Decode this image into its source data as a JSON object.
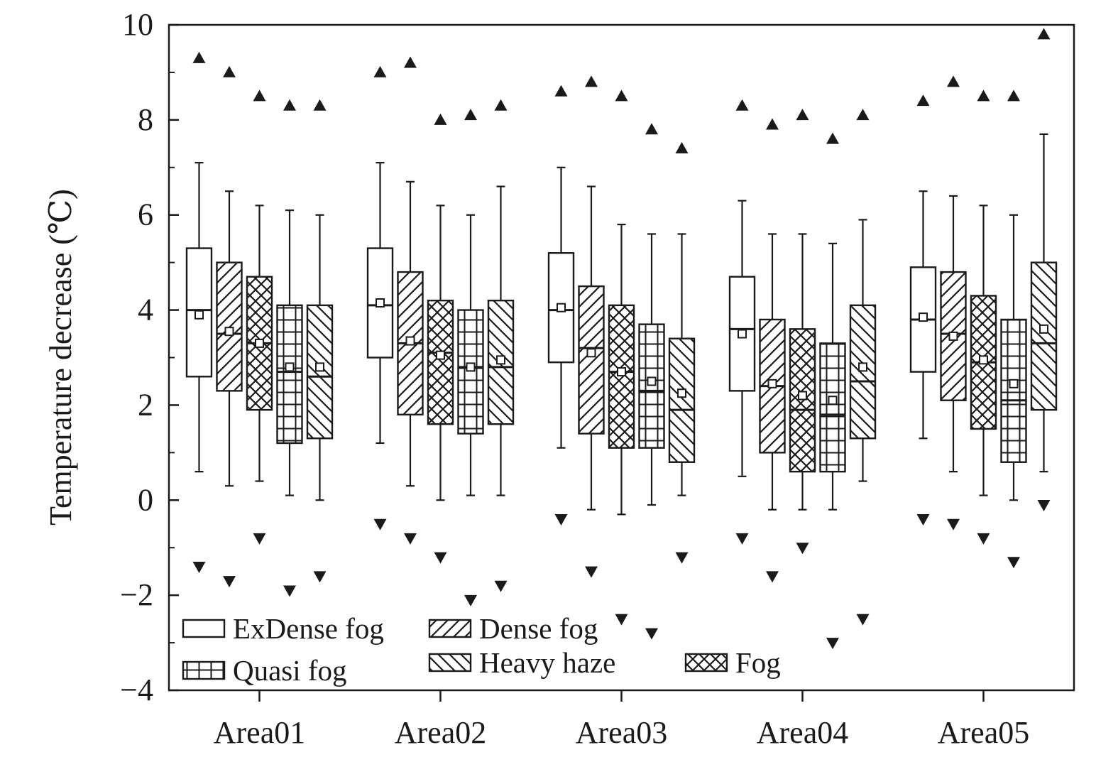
{
  "chart_data": {
    "type": "boxplot",
    "ylabel": "Temperature decrease (℃)",
    "xlabel": "",
    "ylim": [
      -4,
      10
    ],
    "yticks": [
      -4,
      -2,
      0,
      2,
      4,
      6,
      8,
      10
    ],
    "ytick_labels": [
      "−4",
      "−2",
      "0",
      "2",
      "4",
      "6",
      "8",
      "10"
    ],
    "categories": [
      "Area01",
      "Area02",
      "Area03",
      "Area04",
      "Area05"
    ],
    "series_order": [
      "ExDense fog",
      "Dense fog",
      "Fog",
      "Quasi fog",
      "Heavy haze"
    ],
    "legend": [
      {
        "name": "ExDense fog",
        "pattern": "none"
      },
      {
        "name": "Dense fog",
        "pattern": "diag"
      },
      {
        "name": "Quasi fog",
        "pattern": "grid"
      },
      {
        "name": "Heavy haze",
        "pattern": "antidiag"
      },
      {
        "name": "Fog",
        "pattern": "cross"
      }
    ],
    "legend_position": "bottom-left",
    "boxes": {
      "Area01": [
        {
          "series": "ExDense fog",
          "min": 0.6,
          "q1": 2.6,
          "median": 4.0,
          "q3": 5.3,
          "max": 7.1,
          "mean": 3.9,
          "outlier_high": 9.3,
          "outlier_low": -1.4
        },
        {
          "series": "Dense fog",
          "min": 0.3,
          "q1": 2.3,
          "median": 3.5,
          "q3": 5.0,
          "max": 6.5,
          "mean": 3.55,
          "outlier_high": 9.0,
          "outlier_low": -1.7
        },
        {
          "series": "Fog",
          "min": 0.4,
          "q1": 1.9,
          "median": 3.3,
          "q3": 4.7,
          "max": 6.2,
          "mean": 3.3,
          "outlier_high": 8.5,
          "outlier_low": -0.8
        },
        {
          "series": "Quasi fog",
          "min": 0.1,
          "q1": 1.2,
          "median": 2.7,
          "q3": 4.1,
          "max": 6.1,
          "mean": 2.8,
          "outlier_high": 8.3,
          "outlier_low": -1.9
        },
        {
          "series": "Heavy haze",
          "min": 0.0,
          "q1": 1.3,
          "median": 2.6,
          "q3": 4.1,
          "max": 6.0,
          "mean": 2.8,
          "outlier_high": 8.3,
          "outlier_low": -1.6
        }
      ],
      "Area02": [
        {
          "series": "ExDense fog",
          "min": 1.2,
          "q1": 3.0,
          "median": 4.1,
          "q3": 5.3,
          "max": 7.1,
          "mean": 4.15,
          "outlier_high": 9.0,
          "outlier_low": -0.5
        },
        {
          "series": "Dense fog",
          "min": 0.3,
          "q1": 1.8,
          "median": 3.3,
          "q3": 4.8,
          "max": 6.7,
          "mean": 3.35,
          "outlier_high": 9.2,
          "outlier_low": -0.8
        },
        {
          "series": "Fog",
          "min": 0.0,
          "q1": 1.6,
          "median": 3.1,
          "q3": 4.2,
          "max": 6.2,
          "mean": 3.05,
          "outlier_high": 8.0,
          "outlier_low": -1.2
        },
        {
          "series": "Quasi fog",
          "min": 0.1,
          "q1": 1.4,
          "median": 2.8,
          "q3": 4.0,
          "max": 6.0,
          "mean": 2.8,
          "outlier_high": 8.1,
          "outlier_low": -2.1
        },
        {
          "series": "Heavy haze",
          "min": 0.1,
          "q1": 1.6,
          "median": 2.8,
          "q3": 4.2,
          "max": 6.6,
          "mean": 2.95,
          "outlier_high": 8.3,
          "outlier_low": -1.8
        }
      ],
      "Area03": [
        {
          "series": "ExDense fog",
          "min": 1.1,
          "q1": 2.9,
          "median": 4.0,
          "q3": 5.2,
          "max": 7.0,
          "mean": 4.05,
          "outlier_high": 8.6,
          "outlier_low": -0.4
        },
        {
          "series": "Dense fog",
          "min": -0.2,
          "q1": 1.4,
          "median": 3.2,
          "q3": 4.5,
          "max": 6.6,
          "mean": 3.1,
          "outlier_high": 8.8,
          "outlier_low": -1.5
        },
        {
          "series": "Fog",
          "min": -0.3,
          "q1": 1.1,
          "median": 2.7,
          "q3": 4.1,
          "max": 5.8,
          "mean": 2.7,
          "outlier_high": 8.5,
          "outlier_low": -2.5
        },
        {
          "series": "Quasi fog",
          "min": -0.1,
          "q1": 1.1,
          "median": 2.3,
          "q3": 3.7,
          "max": 5.6,
          "mean": 2.5,
          "outlier_high": 7.8,
          "outlier_low": -2.8
        },
        {
          "series": "Heavy haze",
          "min": 0.1,
          "q1": 0.8,
          "median": 1.9,
          "q3": 3.4,
          "max": 5.6,
          "mean": 2.25,
          "outlier_high": 7.4,
          "outlier_low": -1.2
        }
      ],
      "Area04": [
        {
          "series": "ExDense fog",
          "min": 0.5,
          "q1": 2.3,
          "median": 3.6,
          "q3": 4.7,
          "max": 6.3,
          "mean": 3.5,
          "outlier_high": 8.3,
          "outlier_low": -0.8
        },
        {
          "series": "Dense fog",
          "min": -0.2,
          "q1": 1.0,
          "median": 2.4,
          "q3": 3.8,
          "max": 5.6,
          "mean": 2.45,
          "outlier_high": 7.9,
          "outlier_low": -1.6
        },
        {
          "series": "Fog",
          "min": -0.2,
          "q1": 0.6,
          "median": 1.9,
          "q3": 3.6,
          "max": 5.6,
          "mean": 2.2,
          "outlier_high": 8.1,
          "outlier_low": -1.0
        },
        {
          "series": "Quasi fog",
          "min": -0.2,
          "q1": 0.6,
          "median": 1.8,
          "q3": 3.3,
          "max": 5.4,
          "mean": 2.1,
          "outlier_high": 7.6,
          "outlier_low": -3.0
        },
        {
          "series": "Heavy haze",
          "min": 0.4,
          "q1": 1.3,
          "median": 2.5,
          "q3": 4.1,
          "max": 5.9,
          "mean": 2.8,
          "outlier_high": 8.1,
          "outlier_low": -2.5
        }
      ],
      "Area05": [
        {
          "series": "ExDense fog",
          "min": 1.3,
          "q1": 2.7,
          "median": 3.8,
          "q3": 4.9,
          "max": 6.5,
          "mean": 3.85,
          "outlier_high": 8.4,
          "outlier_low": -0.4
        },
        {
          "series": "Dense fog",
          "min": 0.6,
          "q1": 2.1,
          "median": 3.5,
          "q3": 4.8,
          "max": 6.4,
          "mean": 3.45,
          "outlier_high": 8.8,
          "outlier_low": -0.5
        },
        {
          "series": "Fog",
          "min": 0.1,
          "q1": 1.5,
          "median": 2.9,
          "q3": 4.3,
          "max": 6.2,
          "mean": 2.95,
          "outlier_high": 8.5,
          "outlier_low": -0.8
        },
        {
          "series": "Quasi fog",
          "min": 0.0,
          "q1": 0.8,
          "median": 2.1,
          "q3": 3.8,
          "max": 6.0,
          "mean": 2.45,
          "outlier_high": 8.5,
          "outlier_low": -1.3
        },
        {
          "series": "Heavy haze",
          "min": 0.6,
          "q1": 1.9,
          "median": 3.3,
          "q3": 5.0,
          "max": 7.7,
          "mean": 3.6,
          "outlier_high": 9.8,
          "outlier_low": -0.1
        }
      ]
    }
  }
}
